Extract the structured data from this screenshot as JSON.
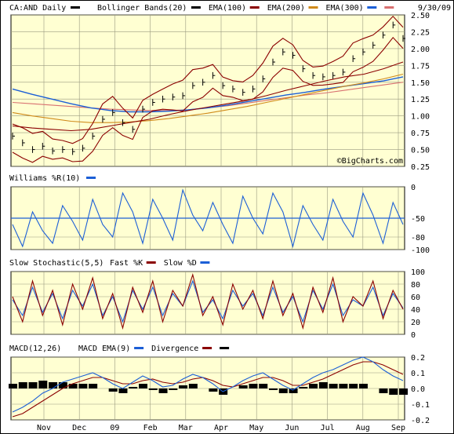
{
  "chart_data": [
    {
      "type": "line",
      "panel": "price",
      "title": "CA:AND Daily",
      "date_label": "9/30/09",
      "watermark": "©BigCharts.com",
      "legend": [
        {
          "name": "Bollinger Bands(20)",
          "color": "#000000"
        },
        {
          "name": "EMA(100)",
          "color": "#8b0000"
        },
        {
          "name": "EMA(200)",
          "color": "#d08a1a"
        },
        {
          "name": "EMA(300)",
          "color": "#1c5fd6"
        },
        {
          "name": "",
          "color": "#d87070"
        }
      ],
      "x_months": [
        "Nov",
        "Dec",
        "09",
        "Feb",
        "Mar",
        "Apr",
        "May",
        "Jun",
        "Jul",
        "Aug",
        "Sep"
      ],
      "ylim": [
        0.25,
        2.5
      ],
      "yticks": [
        "2.50",
        "2.25",
        "2.00",
        "1.75",
        "1.50",
        "1.25",
        "1.00",
        "0.75",
        "0.50",
        "0.25"
      ],
      "grid": true,
      "close": {
        "x": [
          0,
          6,
          12,
          18,
          24,
          30,
          36,
          42,
          48,
          54,
          60,
          66,
          72,
          78,
          84,
          90,
          96,
          102,
          108,
          114,
          120,
          126,
          132,
          138,
          144,
          150,
          156,
          162,
          168,
          174,
          180,
          186,
          192,
          198,
          204,
          210,
          216,
          222,
          228,
          234
        ],
        "y": [
          0.7,
          0.6,
          0.5,
          0.55,
          0.48,
          0.5,
          0.47,
          0.52,
          0.7,
          0.95,
          1.05,
          0.9,
          0.8,
          1.1,
          1.2,
          1.25,
          1.28,
          1.3,
          1.45,
          1.5,
          1.6,
          1.45,
          1.4,
          1.35,
          1.4,
          1.55,
          1.8,
          1.95,
          1.9,
          1.7,
          1.6,
          1.58,
          1.6,
          1.65,
          1.85,
          1.95,
          2.05,
          2.2,
          2.35,
          2.15
        ]
      },
      "ema100": [
        0.85,
        0.82,
        0.8,
        0.78,
        0.8,
        0.85,
        0.9,
        0.95,
        1.02,
        1.08,
        1.13,
        1.18,
        1.23,
        1.3,
        1.38,
        1.45,
        1.52,
        1.58,
        1.62,
        1.7,
        1.8
      ],
      "ema200": [
        1.05,
        1.0,
        0.96,
        0.92,
        0.9,
        0.9,
        0.91,
        0.93,
        0.96,
        1.0,
        1.04,
        1.09,
        1.14,
        1.2,
        1.26,
        1.32,
        1.38,
        1.44,
        1.49,
        1.55,
        1.62
      ],
      "ema300": [
        1.4,
        1.32,
        1.25,
        1.18,
        1.12,
        1.08,
        1.06,
        1.06,
        1.07,
        1.09,
        1.12,
        1.16,
        1.21,
        1.26,
        1.31,
        1.35,
        1.4,
        1.44,
        1.48,
        1.52,
        1.58
      ],
      "pinkline": [
        1.2,
        1.18,
        1.16,
        1.14,
        1.12,
        1.1,
        1.09,
        1.08,
        1.08,
        1.09,
        1.12,
        1.15,
        1.19,
        1.23,
        1.27,
        1.31,
        1.34,
        1.38,
        1.42,
        1.46,
        1.5
      ]
    },
    {
      "type": "line",
      "panel": "williams",
      "title": "Williams %R(10)",
      "color": "#1c5fd6",
      "ylim": [
        -100,
        0
      ],
      "yticks": [
        "0",
        "-50",
        "-80",
        "-100"
      ],
      "reference_line": -50,
      "values": [
        -60,
        -95,
        -40,
        -70,
        -90,
        -30,
        -55,
        -85,
        -20,
        -60,
        -80,
        -10,
        -40,
        -90,
        -20,
        -50,
        -85,
        -5,
        -45,
        -70,
        -25,
        -60,
        -90,
        -15,
        -50,
        -75,
        -10,
        -40,
        -95,
        -30,
        -60,
        -85,
        -20,
        -55,
        -80,
        -10,
        -45,
        -90,
        -25,
        -60
      ]
    },
    {
      "type": "line",
      "panel": "stochastic",
      "title": "Slow Stochastic(5,5)",
      "legend": [
        {
          "name": "Fast %K",
          "color": "#8b0000"
        },
        {
          "name": "Slow %D",
          "color": "#1c5fd6"
        }
      ],
      "ylim": [
        0,
        100
      ],
      "yticks": [
        "100",
        "80",
        "60",
        "40",
        "20",
        "0"
      ],
      "fast_k": [
        60,
        20,
        85,
        30,
        70,
        15,
        80,
        40,
        90,
        25,
        65,
        10,
        75,
        35,
        85,
        20,
        70,
        45,
        95,
        30,
        60,
        15,
        80,
        40,
        70,
        25,
        85,
        30,
        65,
        10,
        75,
        35,
        90,
        20,
        60,
        45,
        85,
        25,
        70,
        40
      ],
      "slow_d": [
        55,
        30,
        75,
        35,
        65,
        25,
        70,
        45,
        80,
        30,
        60,
        20,
        70,
        40,
        75,
        30,
        65,
        45,
        85,
        35,
        55,
        25,
        70,
        45,
        65,
        30,
        75,
        35,
        60,
        20,
        70,
        40,
        80,
        30,
        55,
        45,
        75,
        30,
        65,
        42
      ]
    },
    {
      "type": "line",
      "panel": "macd",
      "title": "MACD(12,26)",
      "legend": [
        {
          "name": "MACD EMA(9)",
          "color": "#1c5fd6"
        },
        {
          "name": "Divergence",
          "color": "#8b0000"
        },
        {
          "name": "",
          "color": "#000000"
        }
      ],
      "ylim": [
        -0.2,
        0.2
      ],
      "yticks": [
        "0.2",
        "0.1",
        "0.0",
        "-0.1",
        "-0.2"
      ],
      "macd": [
        -0.15,
        -0.12,
        -0.08,
        -0.03,
        0.0,
        0.04,
        0.06,
        0.08,
        0.1,
        0.07,
        0.03,
        0.0,
        0.04,
        0.08,
        0.05,
        0.01,
        0.02,
        0.06,
        0.09,
        0.07,
        0.03,
        -0.02,
        0.01,
        0.05,
        0.08,
        0.1,
        0.06,
        0.02,
        -0.01,
        0.03,
        0.07,
        0.1,
        0.12,
        0.15,
        0.18,
        0.2,
        0.17,
        0.12,
        0.08,
        0.05
      ],
      "signal": [
        -0.18,
        -0.16,
        -0.12,
        -0.08,
        -0.04,
        0.0,
        0.03,
        0.05,
        0.07,
        0.07,
        0.05,
        0.03,
        0.03,
        0.05,
        0.06,
        0.04,
        0.03,
        0.04,
        0.06,
        0.07,
        0.05,
        0.02,
        0.01,
        0.03,
        0.05,
        0.07,
        0.07,
        0.05,
        0.02,
        0.02,
        0.04,
        0.06,
        0.09,
        0.12,
        0.15,
        0.17,
        0.17,
        0.15,
        0.12,
        0.09
      ],
      "divergence": [
        0.03,
        0.04,
        0.04,
        0.05,
        0.04,
        0.04,
        0.03,
        0.03,
        0.03,
        0.0,
        -0.02,
        -0.03,
        0.01,
        0.03,
        -0.01,
        -0.03,
        -0.01,
        0.02,
        0.03,
        0.0,
        -0.02,
        -0.04,
        0.0,
        0.02,
        0.03,
        0.03,
        -0.01,
        -0.03,
        -0.03,
        0.01,
        0.03,
        0.04,
        0.03,
        0.03,
        0.03,
        0.03,
        0.0,
        -0.03,
        -0.04,
        -0.04
      ]
    }
  ]
}
